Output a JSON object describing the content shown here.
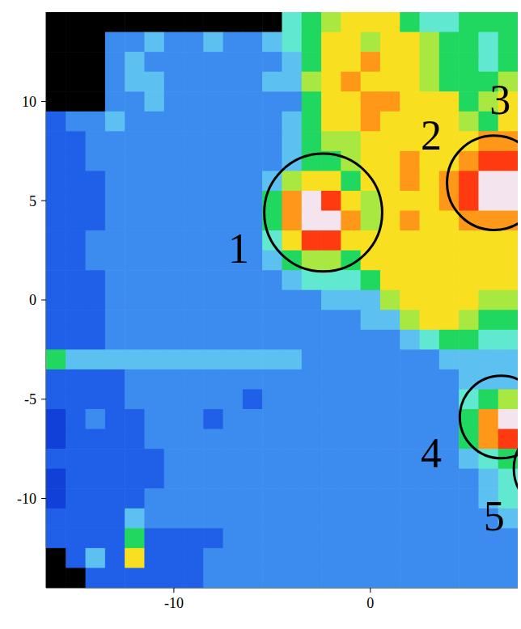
{
  "chart_data": {
    "type": "heatmap",
    "xlim": [
      -16.5,
      7.5
    ],
    "ylim": [
      -14.5,
      14.5
    ],
    "xticks": [
      -10,
      0
    ],
    "yticks": [
      -10,
      -5,
      0,
      5,
      10
    ],
    "zlim": [
      0,
      10
    ],
    "cell_x": [
      -16,
      -15,
      -14,
      -13,
      -12,
      -11,
      -10,
      -9,
      -8,
      -7,
      -6,
      -5,
      -4,
      -3,
      -2,
      -1,
      0,
      1,
      2,
      3,
      4,
      5,
      6,
      7
    ],
    "cell_y": [
      14,
      13,
      12,
      11,
      10,
      9,
      8,
      7,
      6,
      5,
      4,
      3,
      2,
      1,
      0,
      -1,
      -2,
      -3,
      -4,
      -5,
      -6,
      -7,
      -8,
      -9,
      -10,
      -11,
      -12,
      -13,
      -14
    ],
    "cells": [
      [
        null,
        null,
        null,
        null,
        null,
        null,
        null,
        null,
        null,
        null,
        null,
        null,
        4,
        5,
        6,
        7,
        7,
        7,
        5,
        4,
        4,
        5,
        5,
        5
      ],
      [
        null,
        null,
        null,
        2,
        2,
        3,
        2,
        2,
        3,
        2,
        2,
        3,
        4,
        5,
        7,
        7,
        6,
        7,
        7,
        6,
        5,
        5,
        4,
        5
      ],
      [
        null,
        null,
        null,
        2,
        3,
        2,
        2,
        2,
        2,
        2,
        2,
        2,
        3,
        5,
        7,
        7,
        8,
        7,
        7,
        6,
        5,
        5,
        4,
        5
      ],
      [
        null,
        null,
        null,
        2,
        3,
        3,
        2,
        2,
        2,
        2,
        2,
        3,
        3,
        6,
        7,
        8,
        7,
        7,
        7,
        6,
        5,
        5,
        5,
        6
      ],
      [
        null,
        null,
        null,
        2,
        2,
        3,
        2,
        2,
        2,
        2,
        2,
        2,
        2,
        5,
        7,
        7,
        8,
        8,
        7,
        7,
        7,
        5,
        6,
        7
      ],
      [
        1,
        2,
        2,
        3,
        2,
        2,
        2,
        2,
        2,
        2,
        2,
        2,
        3,
        5,
        7,
        7,
        8,
        7,
        7,
        7,
        7,
        6,
        5,
        7
      ],
      [
        1,
        1,
        2,
        2,
        2,
        2,
        2,
        2,
        2,
        2,
        2,
        2,
        3,
        5,
        6,
        6,
        7,
        7,
        7,
        7,
        7,
        7,
        8,
        8
      ],
      [
        1,
        1,
        2,
        2,
        2,
        2,
        2,
        2,
        2,
        2,
        2,
        2,
        3,
        5,
        5,
        6,
        7,
        7,
        8,
        7,
        7,
        8,
        9,
        9
      ],
      [
        1,
        1,
        1,
        2,
        2,
        2,
        2,
        2,
        2,
        2,
        2,
        3,
        6,
        7,
        7,
        5,
        7,
        7,
        8,
        7,
        8,
        9,
        10,
        10
      ],
      [
        1,
        1,
        1,
        2,
        2,
        2,
        2,
        2,
        2,
        2,
        2,
        5,
        8,
        10,
        9,
        7,
        6,
        7,
        7,
        7,
        8,
        9,
        10,
        10
      ],
      [
        1,
        1,
        1,
        2,
        2,
        2,
        2,
        2,
        2,
        2,
        2,
        5,
        8,
        10,
        10,
        8,
        6,
        7,
        8,
        7,
        7,
        8,
        8,
        8
      ],
      [
        1,
        1,
        2,
        2,
        2,
        2,
        2,
        2,
        2,
        2,
        2,
        4,
        7,
        9,
        9,
        7,
        7,
        7,
        7,
        7,
        7,
        7,
        7,
        7
      ],
      [
        1,
        1,
        2,
        2,
        2,
        2,
        2,
        2,
        2,
        2,
        2,
        3,
        5,
        6,
        6,
        5,
        7,
        7,
        7,
        7,
        7,
        7,
        7,
        7
      ],
      [
        1,
        1,
        1,
        2,
        2,
        2,
        2,
        2,
        2,
        2,
        2,
        2,
        3,
        4,
        4,
        4,
        5,
        7,
        7,
        7,
        7,
        7,
        7,
        7
      ],
      [
        1,
        1,
        1,
        2,
        2,
        2,
        2,
        2,
        2,
        2,
        2,
        2,
        2,
        2,
        3,
        3,
        3,
        6,
        7,
        7,
        7,
        7,
        6,
        6
      ],
      [
        1,
        1,
        1,
        2,
        2,
        2,
        2,
        2,
        2,
        2,
        2,
        2,
        2,
        2,
        2,
        2,
        3,
        3,
        6,
        7,
        7,
        6,
        5,
        5
      ],
      [
        1,
        1,
        1,
        2,
        2,
        2,
        2,
        2,
        2,
        2,
        2,
        2,
        2,
        2,
        2,
        2,
        2,
        2,
        3,
        4,
        5,
        5,
        4,
        4
      ],
      [
        5,
        3,
        3,
        3,
        3,
        3,
        3,
        3,
        3,
        3,
        3,
        3,
        3,
        2,
        2,
        2,
        2,
        2,
        2,
        2,
        3,
        3,
        3,
        3
      ],
      [
        1,
        1,
        1,
        1,
        2,
        2,
        2,
        2,
        2,
        2,
        2,
        2,
        2,
        2,
        2,
        2,
        2,
        2,
        2,
        2,
        2,
        3,
        3,
        3
      ],
      [
        1,
        1,
        1,
        1,
        2,
        2,
        2,
        2,
        2,
        2,
        1,
        2,
        2,
        2,
        2,
        2,
        2,
        2,
        2,
        2,
        2,
        4,
        5,
        6
      ],
      [
        0,
        1,
        2,
        1,
        1,
        2,
        2,
        2,
        1,
        2,
        2,
        2,
        2,
        2,
        2,
        2,
        2,
        2,
        2,
        2,
        2,
        5,
        8,
        10
      ],
      [
        0,
        1,
        1,
        1,
        1,
        2,
        2,
        2,
        2,
        2,
        2,
        2,
        2,
        2,
        2,
        2,
        2,
        2,
        2,
        2,
        2,
        5,
        8,
        9
      ],
      [
        1,
        1,
        1,
        1,
        1,
        1,
        2,
        2,
        2,
        2,
        2,
        2,
        2,
        2,
        2,
        2,
        2,
        2,
        2,
        2,
        2,
        3,
        4,
        5
      ],
      [
        0,
        1,
        1,
        1,
        1,
        1,
        2,
        2,
        2,
        2,
        2,
        2,
        2,
        2,
        2,
        2,
        2,
        2,
        2,
        2,
        2,
        2,
        3,
        4
      ],
      [
        0,
        1,
        1,
        1,
        1,
        2,
        2,
        2,
        2,
        2,
        2,
        2,
        2,
        2,
        2,
        2,
        2,
        2,
        2,
        2,
        2,
        2,
        3,
        4
      ],
      [
        1,
        1,
        1,
        1,
        3,
        2,
        2,
        2,
        2,
        2,
        2,
        2,
        2,
        2,
        2,
        2,
        2,
        2,
        2,
        2,
        2,
        2,
        2,
        3
      ],
      [
        1,
        1,
        1,
        1,
        5,
        1,
        1,
        1,
        1,
        2,
        2,
        2,
        2,
        2,
        2,
        2,
        2,
        2,
        2,
        2,
        2,
        2,
        2,
        2
      ],
      [
        null,
        1,
        3,
        1,
        7,
        1,
        1,
        1,
        2,
        2,
        2,
        2,
        2,
        2,
        2,
        2,
        2,
        2,
        2,
        2,
        2,
        2,
        2,
        2
      ],
      [
        null,
        null,
        1,
        1,
        1,
        1,
        1,
        1,
        2,
        2,
        2,
        2,
        2,
        2,
        2,
        2,
        2,
        2,
        2,
        2,
        2,
        2,
        2,
        2
      ]
    ],
    "circles": [
      {
        "x": -2.4,
        "y": 4.4,
        "r": 3.0
      },
      {
        "x": 6.3,
        "y": 5.9,
        "r": 2.4
      },
      {
        "x": 6.65,
        "y": -5.9,
        "r": 2.1
      },
      {
        "x": 9.5,
        "y": -8.5,
        "r": 2.2
      }
    ],
    "annotations": [
      {
        "text": "1",
        "x": -6.7,
        "y": 2.6
      },
      {
        "text": "2",
        "x": 3.1,
        "y": 8.3
      },
      {
        "text": "3",
        "x": 6.6,
        "y": 10.1
      },
      {
        "text": "4",
        "x": 3.1,
        "y": -7.7
      },
      {
        "text": "5",
        "x": 6.3,
        "y": -10.9
      }
    ]
  }
}
